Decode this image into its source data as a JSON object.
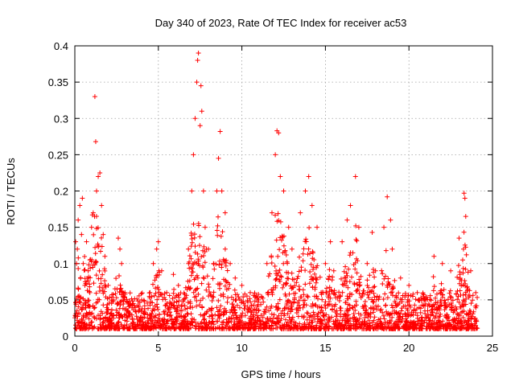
{
  "chart_data": {
    "type": "scatter",
    "title": "Day 340 of 2023, Rate Of TEC Index for receiver ac53",
    "xlabel": "GPS time / hours",
    "ylabel": "ROTI / TECUs",
    "xlim": [
      0,
      25
    ],
    "ylim": [
      0,
      0.4
    ],
    "x_ticks": [
      "0",
      "5",
      "10",
      "15",
      "20",
      "25"
    ],
    "y_ticks": [
      "0",
      "0.05",
      "0.1",
      "0.15",
      "0.2",
      "0.25",
      "0.3",
      "0.35",
      "0.4"
    ],
    "grid": true,
    "legend": "none",
    "marker": "plus",
    "color": "#ff0000",
    "series": [
      {
        "values": [
          [
            0.05,
            0.13
          ],
          [
            0.1,
            0.1
          ],
          [
            0.15,
            0.12
          ],
          [
            0.2,
            0.16
          ],
          [
            0.3,
            0.18
          ],
          [
            0.4,
            0.14
          ],
          [
            0.45,
            0.19
          ],
          [
            0.5,
            0.1
          ],
          [
            0.6,
            0.07
          ],
          [
            0.7,
            0.13
          ],
          [
            0.8,
            0.09
          ],
          [
            0.9,
            0.06
          ],
          [
            1.0,
            0.15
          ],
          [
            1.1,
            0.17
          ],
          [
            1.2,
            0.33
          ],
          [
            1.25,
            0.268
          ],
          [
            1.3,
            0.2
          ],
          [
            1.4,
            0.22
          ],
          [
            1.5,
            0.225
          ],
          [
            1.6,
            0.18
          ],
          [
            1.7,
            0.14
          ],
          [
            1.8,
            0.11
          ],
          [
            2.0,
            0.07
          ],
          [
            2.3,
            0.05
          ],
          [
            2.6,
            0.135
          ],
          [
            2.7,
            0.12
          ],
          [
            2.8,
            0.1
          ],
          [
            3.0,
            0.06
          ],
          [
            3.5,
            0.045
          ],
          [
            4.0,
            0.05
          ],
          [
            4.5,
            0.06
          ],
          [
            4.7,
            0.1
          ],
          [
            4.9,
            0.12
          ],
          [
            5.0,
            0.13
          ],
          [
            5.2,
            0.09
          ],
          [
            5.5,
            0.06
          ],
          [
            5.9,
            0.085
          ],
          [
            6.2,
            0.07
          ],
          [
            6.5,
            0.05
          ],
          [
            6.8,
            0.12
          ],
          [
            7.0,
            0.2
          ],
          [
            7.1,
            0.25
          ],
          [
            7.2,
            0.3
          ],
          [
            7.3,
            0.35
          ],
          [
            7.35,
            0.38
          ],
          [
            7.4,
            0.39
          ],
          [
            7.5,
            0.29
          ],
          [
            7.55,
            0.345
          ],
          [
            7.6,
            0.31
          ],
          [
            7.7,
            0.2
          ],
          [
            7.8,
            0.15
          ],
          [
            8.0,
            0.12
          ],
          [
            8.3,
            0.1
          ],
          [
            8.5,
            0.2
          ],
          [
            8.6,
            0.245
          ],
          [
            8.7,
            0.282
          ],
          [
            8.8,
            0.2
          ],
          [
            9.0,
            0.17
          ],
          [
            9.3,
            0.1
          ],
          [
            9.6,
            0.08
          ],
          [
            10.0,
            0.07
          ],
          [
            10.5,
            0.06
          ],
          [
            11.0,
            0.05
          ],
          [
            11.5,
            0.1
          ],
          [
            11.8,
            0.17
          ],
          [
            12.0,
            0.25
          ],
          [
            12.1,
            0.283
          ],
          [
            12.2,
            0.28
          ],
          [
            12.3,
            0.22
          ],
          [
            12.5,
            0.2
          ],
          [
            12.8,
            0.15
          ],
          [
            13.0,
            0.12
          ],
          [
            13.5,
            0.17
          ],
          [
            13.8,
            0.2
          ],
          [
            14.0,
            0.22
          ],
          [
            14.2,
            0.18
          ],
          [
            14.5,
            0.15
          ],
          [
            15.0,
            0.1
          ],
          [
            15.3,
            0.13
          ],
          [
            15.5,
            0.09
          ],
          [
            16.0,
            0.13
          ],
          [
            16.3,
            0.16
          ],
          [
            16.5,
            0.18
          ],
          [
            16.8,
            0.22
          ],
          [
            17.0,
            0.15
          ],
          [
            17.5,
            0.1
          ],
          [
            17.8,
            0.143
          ],
          [
            18.0,
            0.09
          ],
          [
            18.5,
            0.15
          ],
          [
            18.7,
            0.192
          ],
          [
            18.9,
            0.16
          ],
          [
            19.0,
            0.12
          ],
          [
            19.5,
            0.08
          ],
          [
            20.0,
            0.07
          ],
          [
            20.5,
            0.06
          ],
          [
            21.0,
            0.05
          ],
          [
            21.5,
            0.11
          ],
          [
            22.0,
            0.1
          ],
          [
            22.5,
            0.09
          ],
          [
            23.0,
            0.135
          ],
          [
            23.3,
            0.197
          ],
          [
            23.35,
            0.19
          ],
          [
            23.4,
            0.165
          ],
          [
            23.7,
            0.09
          ],
          [
            24.0,
            0.06
          ]
        ]
      }
    ]
  }
}
